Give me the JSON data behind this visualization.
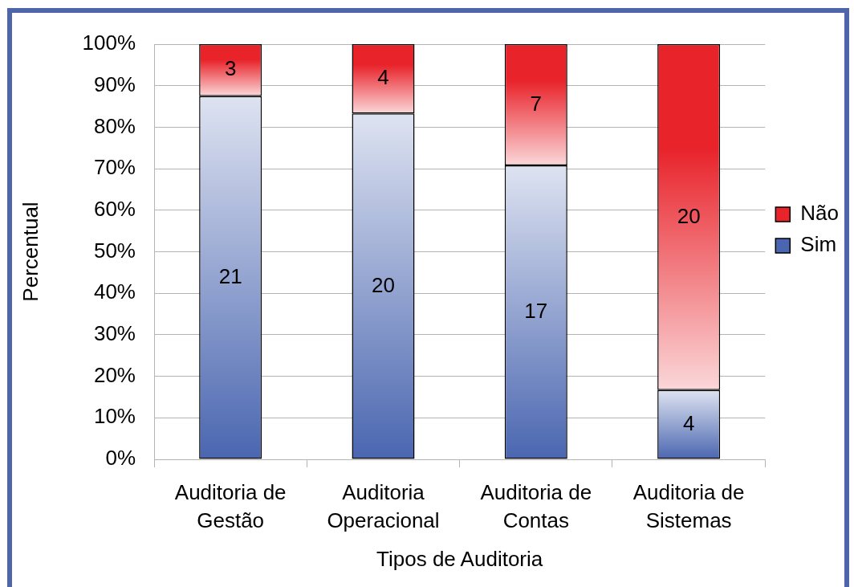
{
  "chart_data": {
    "type": "bar",
    "stacked": true,
    "xlabel": "Tipos de Auditoria",
    "ylabel": "Percentual",
    "categories": [
      "Auditoria de Gestão",
      "Auditoria Operacional",
      "Auditoria de Contas",
      "Auditoria de Sistemas"
    ],
    "series": [
      {
        "name": "Sim",
        "color": "#4a66b0",
        "values": [
          87.5,
          83.3,
          70.8,
          16.7
        ]
      },
      {
        "name": "Não",
        "color": "#e8232a",
        "values": [
          12.5,
          16.7,
          29.2,
          83.3
        ]
      }
    ],
    "ylim": [
      0,
      100
    ],
    "yticks": [
      {
        "value": 0,
        "label": "0%"
      },
      {
        "value": 10,
        "label": "10%"
      },
      {
        "value": 20,
        "label": "20%"
      },
      {
        "value": 30,
        "label": "30%"
      },
      {
        "value": 40,
        "label": "40%"
      },
      {
        "value": 50,
        "label": "50%"
      },
      {
        "value": 60,
        "label": "60%"
      },
      {
        "value": 70,
        "label": "70%"
      },
      {
        "value": 80,
        "label": "80%"
      },
      {
        "value": 90,
        "label": "90%"
      },
      {
        "value": 100,
        "label": "100%"
      }
    ],
    "annotations": [
      "21",
      "20",
      "17",
      "4",
      "3",
      "4",
      "7",
      "20"
    ],
    "grid": "y",
    "legend": "right"
  }
}
